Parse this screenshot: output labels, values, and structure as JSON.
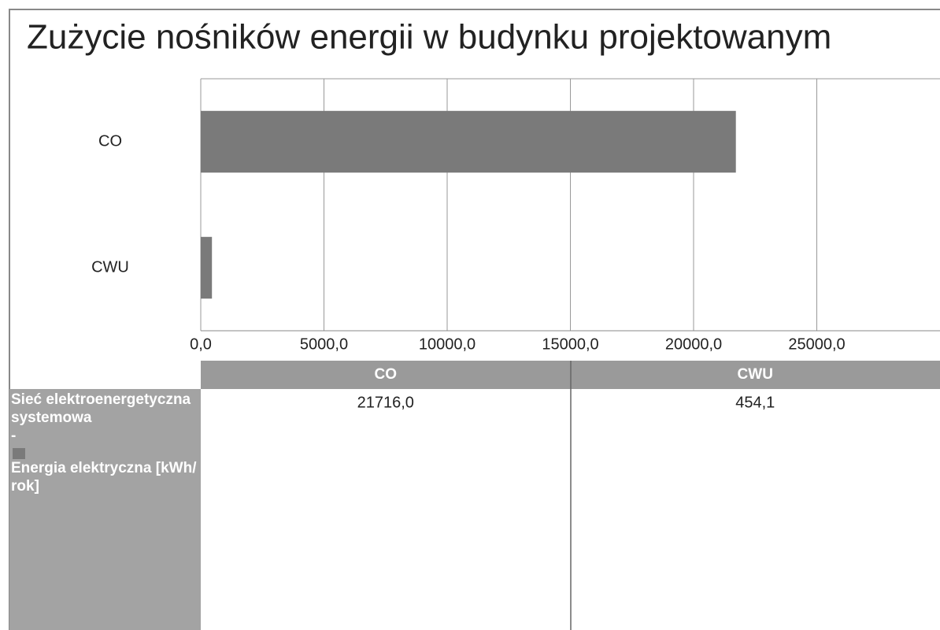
{
  "chart_data": {
    "type": "bar",
    "orientation": "horizontal",
    "title": "Zużycie nośników energii w budynku projektowanym",
    "categories": [
      "CO",
      "CWU"
    ],
    "series": [
      {
        "name": "Sieć elektroenergetyczna systemowa",
        "separator": "-",
        "subname": "Energia elektryczna [kWh/rok]",
        "color": "#7a7a7a",
        "values": [
          21716.0,
          454.1
        ],
        "value_labels": [
          "21716,0",
          "454,1"
        ]
      }
    ],
    "xlim": [
      0,
      30000
    ],
    "xticks": [
      {
        "value": 0,
        "label": "0,0"
      },
      {
        "value": 5000,
        "label": "5000,0"
      },
      {
        "value": 10000,
        "label": "10000,0"
      },
      {
        "value": 15000,
        "label": "15000,0"
      },
      {
        "value": 20000,
        "label": "20000,0"
      },
      {
        "value": 25000,
        "label": "25000,0"
      }
    ],
    "grid": true
  }
}
